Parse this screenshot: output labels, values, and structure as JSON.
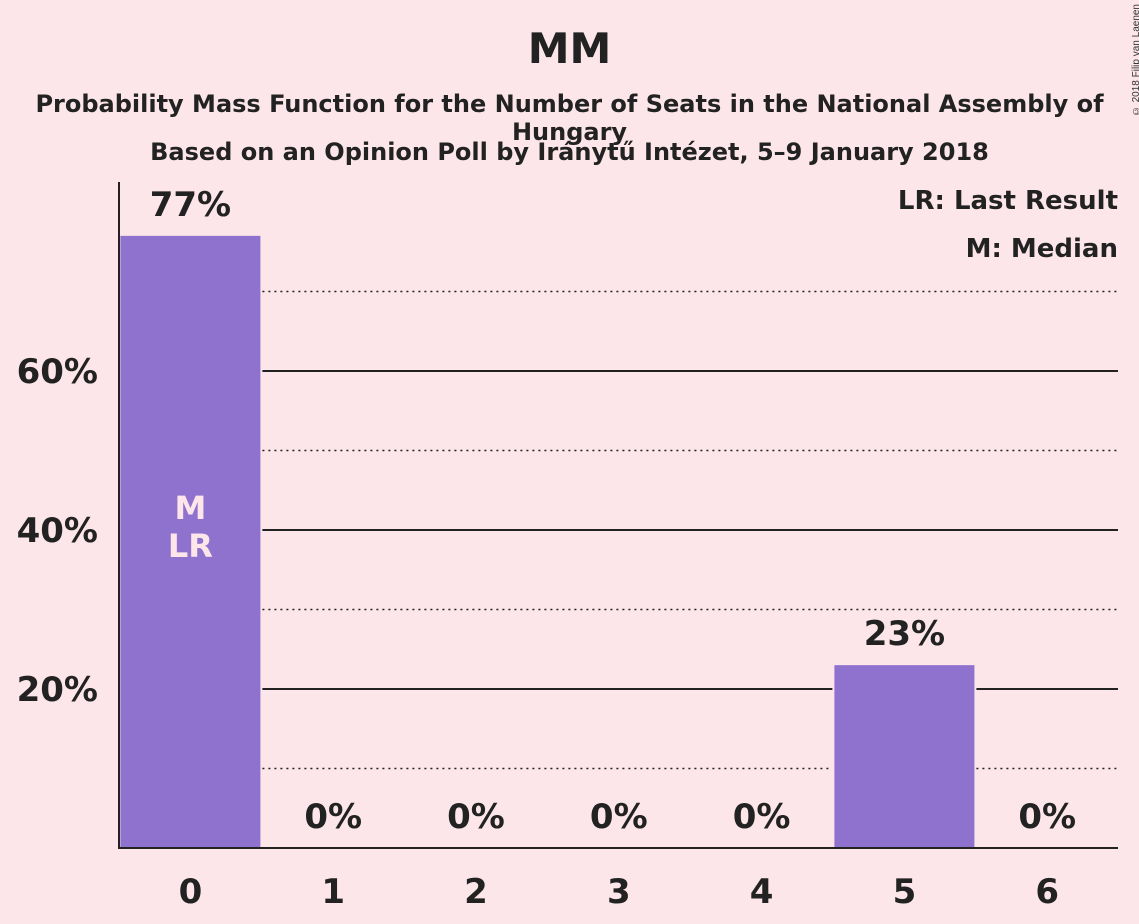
{
  "title": "MM",
  "subtitle_line1": "Probability Mass Function for the Number of Seats in the National Assembly of Hungary",
  "subtitle_line2": "Based on an Opinion Poll by Iránytű Intézet, 5–9 January 2018",
  "copyright": "© 2018 Filip van Laenen",
  "legend": {
    "last_result": "LR: Last Result",
    "median": "M: Median"
  },
  "colors": {
    "background": "#fce6ea",
    "bar": "#8e72cd",
    "marker_text": "#fce6ea",
    "axis": "#222222"
  },
  "chart_data": {
    "type": "bar",
    "categories": [
      "0",
      "1",
      "2",
      "3",
      "4",
      "5",
      "6"
    ],
    "values": [
      77,
      0,
      0,
      0,
      0,
      23,
      0
    ],
    "value_labels": [
      "77%",
      "0%",
      "0%",
      "0%",
      "0%",
      "23%",
      "0%"
    ],
    "ylim": [
      0,
      84
    ],
    "yticks": [
      20,
      40,
      60
    ],
    "ytick_labels": [
      "20%",
      "40%",
      "60%"
    ],
    "minor_gridlines": [
      10,
      30,
      50,
      70
    ],
    "grid": true,
    "legend_position": "top-right",
    "bar_markers": [
      {
        "category": "0",
        "labels": [
          "M",
          "LR"
        ]
      }
    ]
  }
}
